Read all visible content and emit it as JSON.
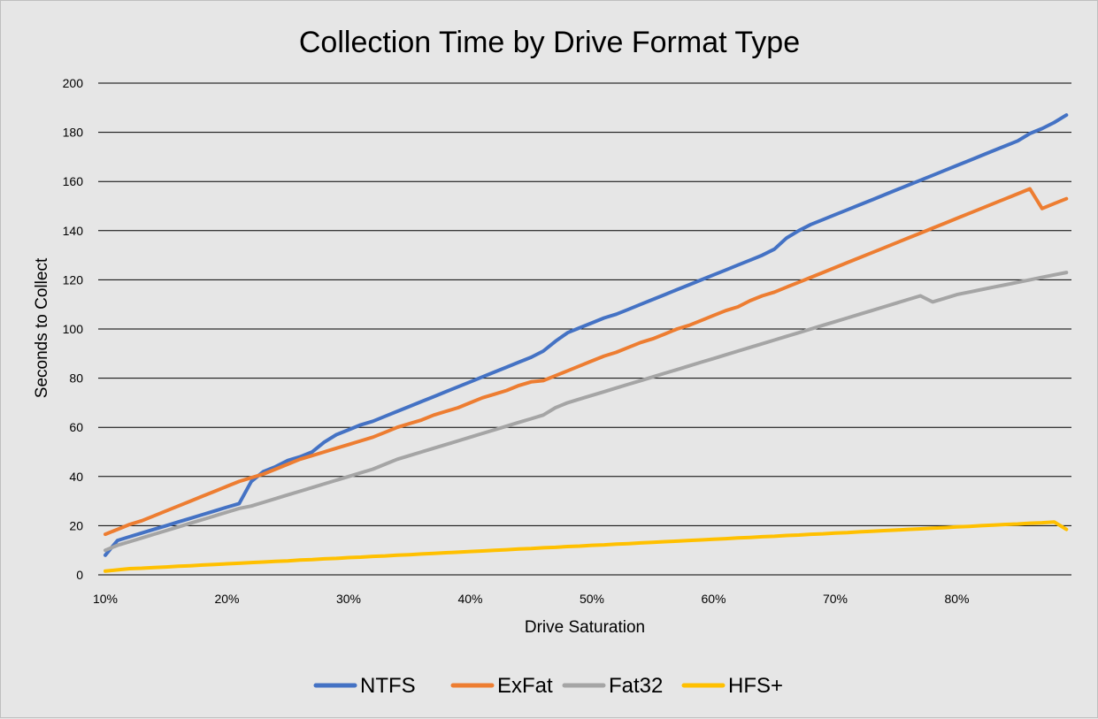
{
  "chart_data": {
    "type": "line",
    "title": "Collection Time by Drive Format Type",
    "xlabel": "Drive Saturation",
    "ylabel": "Seconds to Collect",
    "x_tick_labels": [
      "10%",
      "20%",
      "30%",
      "40%",
      "50%",
      "60%",
      "70%",
      "80%"
    ],
    "y_tick_labels": [
      "0",
      "20",
      "40",
      "60",
      "80",
      "100",
      "120",
      "140",
      "160",
      "180",
      "200"
    ],
    "xlim": [
      0.1,
      0.89
    ],
    "ylim": [
      0,
      200
    ],
    "grid": "horizontal",
    "legend": "bottom",
    "x": [
      0.1,
      0.11,
      0.12,
      0.13,
      0.14,
      0.15,
      0.16,
      0.17,
      0.18,
      0.19,
      0.2,
      0.21,
      0.22,
      0.23,
      0.24,
      0.25,
      0.26,
      0.27,
      0.28,
      0.29,
      0.3,
      0.31,
      0.32,
      0.33,
      0.34,
      0.35,
      0.36,
      0.37,
      0.38,
      0.39,
      0.4,
      0.41,
      0.42,
      0.43,
      0.44,
      0.45,
      0.46,
      0.47,
      0.48,
      0.49,
      0.5,
      0.51,
      0.52,
      0.53,
      0.54,
      0.55,
      0.56,
      0.57,
      0.58,
      0.59,
      0.6,
      0.61,
      0.62,
      0.63,
      0.64,
      0.65,
      0.66,
      0.67,
      0.68,
      0.69,
      0.7,
      0.71,
      0.72,
      0.73,
      0.74,
      0.75,
      0.76,
      0.77,
      0.78,
      0.79,
      0.8,
      0.81,
      0.82,
      0.83,
      0.84,
      0.85,
      0.86,
      0.87,
      0.88,
      0.89
    ],
    "series": [
      {
        "name": "NTFS",
        "color": "#4472c4",
        "values": [
          8,
          14,
          15.5,
          17,
          18.5,
          20,
          21.5,
          23,
          24.5,
          26,
          27.5,
          29,
          38,
          42,
          44,
          46.5,
          48,
          50,
          54,
          57,
          59,
          61,
          62.5,
          64.5,
          66.5,
          68.5,
          70.5,
          72.5,
          74.5,
          76.5,
          78.5,
          80.5,
          82.5,
          84.5,
          86.5,
          88.5,
          91,
          95,
          98.5,
          100.5,
          102.5,
          104.5,
          106,
          108,
          110,
          112,
          114,
          116,
          118,
          120,
          122,
          124,
          126,
          128,
          130,
          132.5,
          137,
          140,
          142.5,
          144.5,
          146.5,
          148.5,
          150.5,
          152.5,
          154.5,
          156.5,
          158.5,
          160.5,
          162.5,
          164.5,
          166.5,
          168.5,
          170.5,
          172.5,
          174.5,
          176.5,
          179.5,
          181.5,
          184,
          187
        ]
      },
      {
        "name": "ExFat",
        "color": "#ed7d31",
        "values": [
          16.5,
          18.5,
          20.5,
          22,
          24,
          26,
          28,
          30,
          32,
          34,
          36,
          38,
          39.5,
          41,
          43,
          45,
          47,
          48.5,
          50,
          51.5,
          53,
          54.5,
          56,
          58,
          60,
          61.5,
          63,
          65,
          66.5,
          68,
          70,
          72,
          73.5,
          75,
          77,
          78.5,
          79,
          81,
          83,
          85,
          87,
          89,
          90.5,
          92.5,
          94.5,
          96,
          98,
          100,
          101.5,
          103.5,
          105.5,
          107.5,
          109,
          111.5,
          113.5,
          115,
          117,
          119,
          121,
          123,
          125,
          127,
          129,
          131,
          133,
          135,
          137,
          139,
          141,
          143,
          145,
          147,
          149,
          151,
          153,
          155,
          157,
          149,
          151,
          153
        ]
      },
      {
        "name": "Fat32",
        "color": "#a5a5a5",
        "values": [
          10,
          12,
          13.5,
          15,
          16.5,
          18,
          19.5,
          21,
          22.5,
          24,
          25.5,
          27,
          28,
          29.5,
          31,
          32.5,
          34,
          35.5,
          37,
          38.5,
          40,
          41.5,
          43,
          45,
          47,
          48.5,
          50,
          51.5,
          53,
          54.5,
          56,
          57.5,
          59,
          60.5,
          62,
          63.5,
          65,
          68,
          70,
          71.5,
          73,
          74.5,
          76,
          77.5,
          79,
          80.5,
          82,
          83.5,
          85,
          86.5,
          88,
          89.5,
          91,
          92.5,
          94,
          95.5,
          97,
          98.5,
          100,
          101.5,
          103,
          104.5,
          106,
          107.5,
          109,
          110.5,
          112,
          113.5,
          111,
          112.5,
          114,
          115,
          116,
          117,
          118,
          119,
          120,
          121,
          122,
          123
        ]
      },
      {
        "name": "HFS+",
        "color": "#ffc000",
        "values": [
          1.5,
          2,
          2.5,
          2.7,
          3,
          3.2,
          3.5,
          3.7,
          4,
          4.2,
          4.5,
          4.7,
          5,
          5.2,
          5.5,
          5.7,
          6,
          6.2,
          6.5,
          6.7,
          7,
          7.2,
          7.5,
          7.7,
          8,
          8.2,
          8.5,
          8.7,
          9,
          9.2,
          9.5,
          9.7,
          10,
          10.2,
          10.5,
          10.7,
          11,
          11.2,
          11.5,
          11.7,
          12,
          12.2,
          12.5,
          12.7,
          13,
          13.2,
          13.5,
          13.7,
          14,
          14.2,
          14.5,
          14.7,
          15,
          15.2,
          15.5,
          15.7,
          16,
          16.2,
          16.5,
          16.7,
          17,
          17.2,
          17.5,
          17.7,
          18,
          18.2,
          18.5,
          18.7,
          19,
          19.2,
          19.5,
          19.7,
          20,
          20.2,
          20.5,
          20.7,
          21,
          21.2,
          21.5,
          18.5
        ]
      }
    ]
  }
}
